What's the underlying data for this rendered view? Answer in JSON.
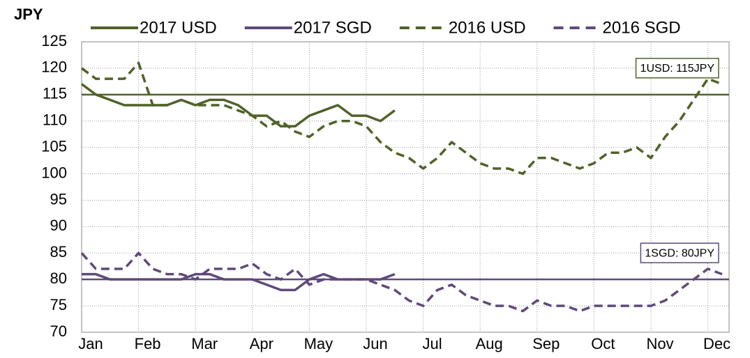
{
  "chart_data": {
    "type": "line",
    "y_label": "JPY",
    "categories": [
      "Jan",
      null,
      null,
      null,
      "Feb",
      null,
      null,
      null,
      "Mar",
      null,
      null,
      null,
      "Apr",
      null,
      null,
      null,
      "May",
      null,
      null,
      null,
      "Jun",
      null,
      null,
      null,
      "Jul",
      null,
      null,
      null,
      "Aug",
      null,
      null,
      null,
      "Sep",
      null,
      null,
      null,
      "Oct",
      null,
      null,
      null,
      "Nov",
      null,
      null,
      null,
      "Dec",
      null
    ],
    "series": [
      {
        "name": "2017 USD",
        "color": "#4f6228",
        "dashed": false,
        "values": [
          117,
          115,
          114,
          113,
          113,
          113,
          113,
          114,
          113,
          114,
          114,
          113,
          111,
          111,
          109,
          109,
          111,
          112,
          113,
          111,
          111,
          110,
          112,
          null,
          null,
          null,
          null,
          null,
          null,
          null,
          null,
          null,
          null,
          null,
          null,
          null,
          null,
          null,
          null,
          null,
          null,
          null,
          null,
          null,
          null,
          null
        ]
      },
      {
        "name": "2017 SGD",
        "color": "#5f497a",
        "dashed": false,
        "values": [
          81,
          81,
          80,
          80,
          80,
          80,
          80,
          80,
          81,
          81,
          80,
          80,
          80,
          79,
          78,
          78,
          80,
          81,
          80,
          80,
          80,
          80,
          81,
          null,
          null,
          null,
          null,
          null,
          null,
          null,
          null,
          null,
          null,
          null,
          null,
          null,
          null,
          null,
          null,
          null,
          null,
          null,
          null,
          null,
          null,
          null
        ]
      },
      {
        "name": "2016 USD",
        "color": "#4f6228",
        "dashed": true,
        "values": [
          120,
          118,
          118,
          118,
          121,
          113,
          113,
          114,
          113,
          113,
          113,
          112,
          111,
          109,
          110,
          108,
          107,
          109,
          110,
          110,
          109,
          106,
          104,
          103,
          101,
          103,
          106,
          104,
          102,
          101,
          101,
          100,
          103,
          103,
          102,
          101,
          102,
          104,
          104,
          105,
          103,
          107,
          110,
          114,
          118,
          117
        ]
      },
      {
        "name": "2016 SGD",
        "color": "#5f497a",
        "dashed": true,
        "values": [
          85,
          82,
          82,
          82,
          85,
          82,
          81,
          81,
          80,
          82,
          82,
          82,
          83,
          81,
          80,
          82,
          79,
          80,
          80,
          80,
          80,
          79,
          78,
          76,
          75,
          78,
          79,
          77,
          76,
          75,
          75,
          74,
          76,
          75,
          75,
          74,
          75,
          75,
          75,
          75,
          75,
          76,
          78,
          80,
          82,
          81
        ]
      }
    ],
    "reference_lines": [
      {
        "value": 115,
        "label": "1USD: 115JPY",
        "color": "#4f6228"
      },
      {
        "value": 80,
        "label": "1SGD: 80JPY",
        "color": "#5f497a"
      }
    ],
    "ylim": [
      70,
      125
    ],
    "yticks": [
      70,
      75,
      80,
      85,
      90,
      95,
      100,
      105,
      110,
      115,
      120,
      125
    ],
    "grid": true,
    "legend": "top"
  }
}
